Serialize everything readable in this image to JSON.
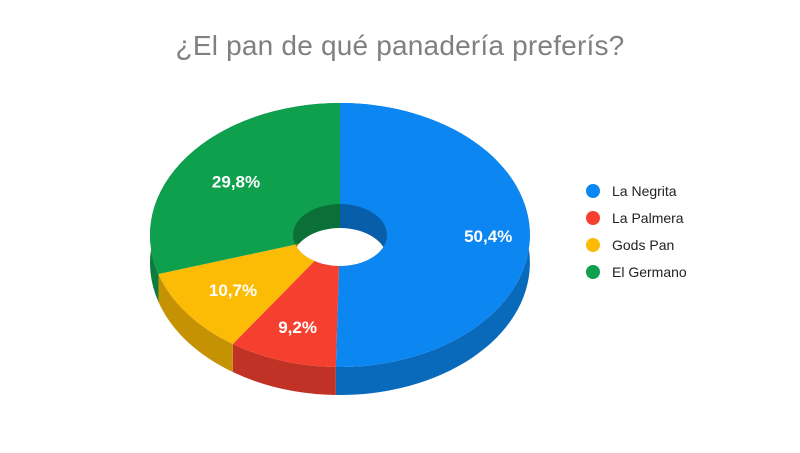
{
  "page": {
    "background": "#ffffff"
  },
  "chart_data": {
    "type": "pie",
    "variant": "3d-donut",
    "title": "¿El pan de qué panadería preferís?",
    "title_color": "#808080",
    "categories": [
      "La Negrita",
      "La Palmera",
      "Gods Pan",
      "El Germano"
    ],
    "values": [
      50.4,
      9.2,
      10.7,
      29.8
    ],
    "value_labels": [
      "50,4%",
      "9,2%",
      "10,7%",
      "29,8%"
    ],
    "colors": [
      "#0C86F0",
      "#F5402F",
      "#FCBB05",
      "#0FA04E"
    ],
    "slice_label_color": "#ffffff",
    "start_angle_deg": 0,
    "direction": "clockwise",
    "legend_position": "right",
    "legend_text_color": "#222222"
  }
}
